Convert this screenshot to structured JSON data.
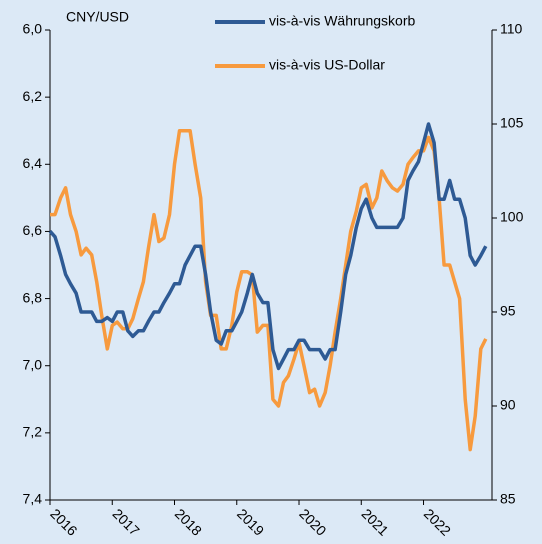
{
  "chart_data": {
    "type": "line",
    "y_axis_label": "CNY/USD",
    "x": [
      2016.0,
      2016.08,
      2016.17,
      2016.25,
      2016.33,
      2016.42,
      2016.5,
      2016.58,
      2016.67,
      2016.75,
      2016.83,
      2016.92,
      2017.0,
      2017.08,
      2017.17,
      2017.25,
      2017.33,
      2017.42,
      2017.5,
      2017.58,
      2017.67,
      2017.75,
      2017.83,
      2017.92,
      2018.0,
      2018.08,
      2018.17,
      2018.25,
      2018.33,
      2018.42,
      2018.5,
      2018.58,
      2018.67,
      2018.75,
      2018.83,
      2018.92,
      2019.0,
      2019.08,
      2019.17,
      2019.25,
      2019.33,
      2019.42,
      2019.5,
      2019.58,
      2019.67,
      2019.75,
      2019.83,
      2019.92,
      2020.0,
      2020.08,
      2020.17,
      2020.25,
      2020.33,
      2020.42,
      2020.5,
      2020.58,
      2020.67,
      2020.75,
      2020.83,
      2020.92,
      2021.0,
      2021.08,
      2021.17,
      2021.25,
      2021.33,
      2021.42,
      2021.5,
      2021.58,
      2021.67,
      2021.75,
      2021.83,
      2021.92,
      2022.0,
      2022.08,
      2022.17,
      2022.25,
      2022.33,
      2022.42,
      2022.5,
      2022.58,
      2022.67,
      2022.75,
      2022.83,
      2022.92,
      2023.0
    ],
    "series": [
      {
        "name": "vis-à-vis Währungskorb",
        "color": "#2e5a94",
        "axis": "y2",
        "values": [
          99.3,
          99,
          98,
          97,
          96.5,
          96,
          95,
          95,
          95,
          94.5,
          94.5,
          94.7,
          94.5,
          95,
          95,
          94,
          93.7,
          94,
          94,
          94.5,
          95,
          95,
          95.5,
          96,
          96.5,
          96.5,
          97.5,
          98,
          98.5,
          98.5,
          97,
          95,
          93.5,
          93.3,
          94,
          94,
          94.5,
          95,
          96,
          97,
          96,
          95.5,
          95.5,
          93,
          92,
          92.5,
          93,
          93,
          93.5,
          93.5,
          93,
          93,
          93,
          92.5,
          93,
          93,
          95,
          97,
          98,
          99.5,
          100.5,
          101,
          100,
          99.5,
          99.5,
          99.5,
          99.5,
          99.5,
          100,
          102,
          102.5,
          103,
          104,
          105,
          104,
          101,
          101,
          102,
          101,
          101,
          100,
          98,
          97.5,
          98,
          98.5
        ]
      },
      {
        "name": "vis-à-vis US-Dollar",
        "color": "#f79a3e",
        "axis": "y",
        "values": [
          6.55,
          6.55,
          6.5,
          6.47,
          6.55,
          6.6,
          6.67,
          6.65,
          6.67,
          6.75,
          6.85,
          6.95,
          6.88,
          6.87,
          6.89,
          6.89,
          6.86,
          6.8,
          6.75,
          6.65,
          6.55,
          6.63,
          6.62,
          6.55,
          6.4,
          6.3,
          6.3,
          6.3,
          6.4,
          6.5,
          6.75,
          6.85,
          6.85,
          6.95,
          6.95,
          6.88,
          6.78,
          6.72,
          6.72,
          6.73,
          6.9,
          6.88,
          6.88,
          7.1,
          7.12,
          7.05,
          7.03,
          6.98,
          6.93,
          7,
          7.08,
          7.07,
          7.12,
          7.08,
          7,
          6.9,
          6.8,
          6.7,
          6.6,
          6.54,
          6.47,
          6.46,
          6.53,
          6.5,
          6.42,
          6.45,
          6.47,
          6.48,
          6.46,
          6.4,
          6.38,
          6.36,
          6.36,
          6.32,
          6.36,
          6.5,
          6.7,
          6.7,
          6.75,
          6.8,
          7.1,
          7.25,
          7.15,
          6.95,
          6.92
        ]
      }
    ],
    "xlim": [
      2016,
      2023.1
    ],
    "xticks": [
      2016,
      2017,
      2018,
      2019,
      2020,
      2021,
      2022
    ],
    "ylim": [
      7.4,
      6.0
    ],
    "yticks": [
      {
        "value": 6.0,
        "label": "6,0"
      },
      {
        "value": 6.2,
        "label": "6,2"
      },
      {
        "value": 6.4,
        "label": "6,4"
      },
      {
        "value": 6.6,
        "label": "6,6"
      },
      {
        "value": 6.8,
        "label": "6,8"
      },
      {
        "value": 7.0,
        "label": "7,0"
      },
      {
        "value": 7.2,
        "label": "7,2"
      },
      {
        "value": 7.4,
        "label": "7,4"
      }
    ],
    "y2lim": [
      85,
      110
    ],
    "y2ticks": [
      85,
      90,
      95,
      100,
      105,
      110
    ]
  }
}
